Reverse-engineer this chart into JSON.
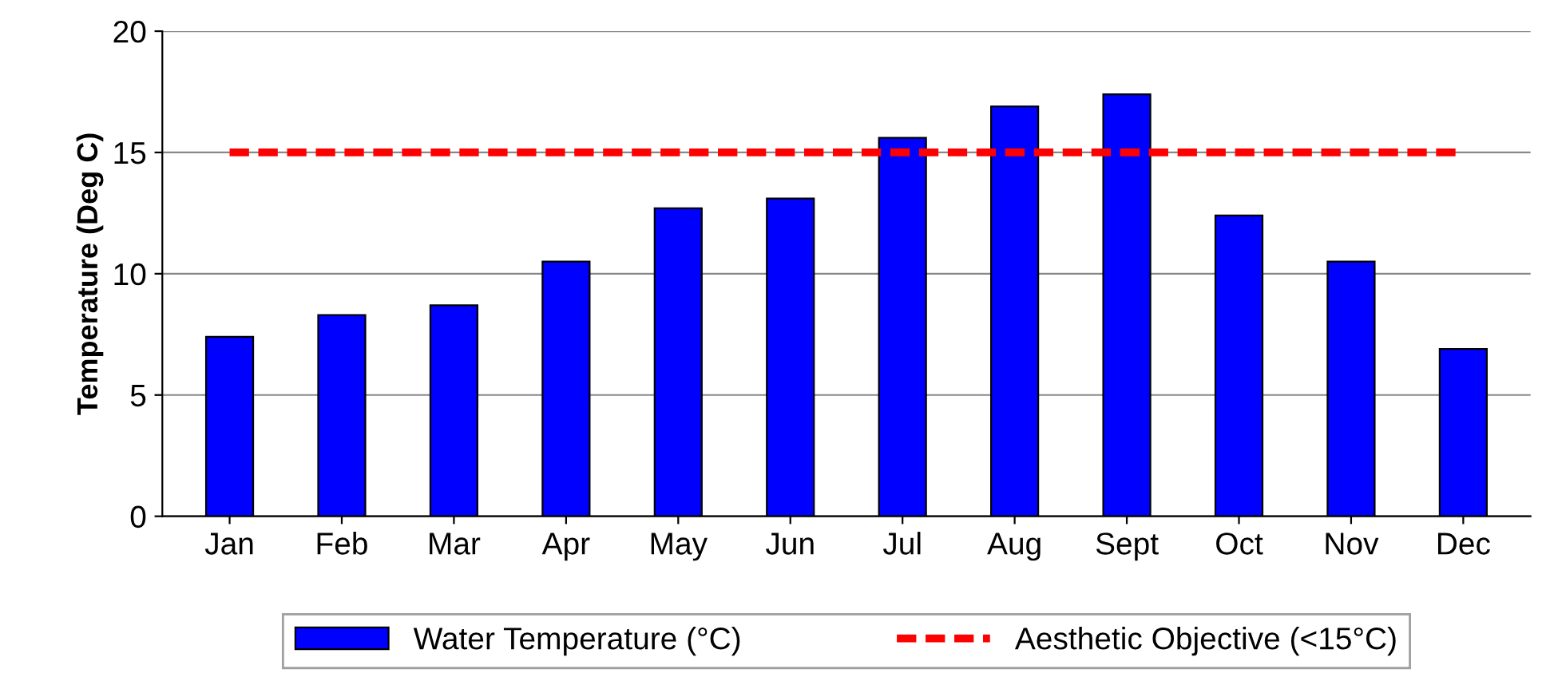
{
  "chart_data": {
    "type": "bar",
    "ylabel": "Temperature (Deg C)",
    "categories": [
      "Jan",
      "Feb",
      "Mar",
      "Apr",
      "May",
      "Jun",
      "Jul",
      "Aug",
      "Sept",
      "Oct",
      "Nov",
      "Dec"
    ],
    "series": [
      {
        "name": "Water Temperature (°C)",
        "color": "#0000ff",
        "values": [
          7.4,
          8.3,
          8.7,
          10.5,
          12.7,
          13.1,
          15.6,
          16.9,
          17.4,
          12.4,
          10.5,
          6.9
        ]
      }
    ],
    "ylim": [
      0,
      20
    ],
    "yticks": [
      0,
      5,
      10,
      15,
      20
    ],
    "grid": "y",
    "legend": "bottom",
    "ref_lines": [
      {
        "axis": "y",
        "value": 15,
        "label": "Aesthetic Objective (<15°C)",
        "color": "#ff0000",
        "line_style": "dashed"
      }
    ]
  }
}
